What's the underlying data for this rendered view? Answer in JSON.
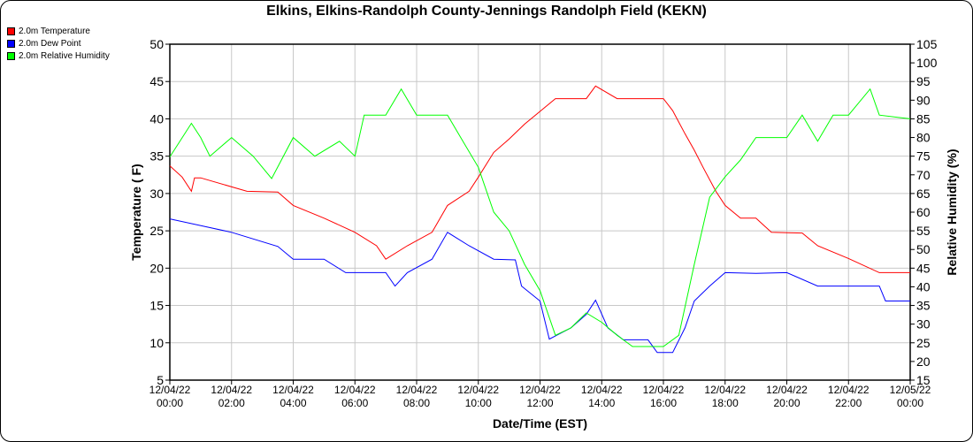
{
  "chart_data": {
    "type": "line",
    "title": "Elkins, Elkins-Randolph County-Jennings Randolph Field (KEKN)",
    "xlabel": "Date/Time (EST)",
    "ylabel": "Temperature ( F)",
    "y2label": "Relative Humidity (%)",
    "xlim_hours": [
      0,
      24
    ],
    "ylim": [
      5,
      50
    ],
    "y2lim": [
      15,
      105
    ],
    "grid": true,
    "legend_position": "top-left",
    "yticks": [
      "5",
      "10",
      "15",
      "20",
      "25",
      "30",
      "35",
      "40",
      "45",
      "50"
    ],
    "y2ticks": [
      "15",
      "20",
      "25",
      "30",
      "35",
      "40",
      "45",
      "50",
      "55",
      "60",
      "65",
      "70",
      "75",
      "80",
      "85",
      "90",
      "95",
      "100",
      "105"
    ],
    "xticks": [
      {
        "date": "12/04/22",
        "time": "00:00"
      },
      {
        "date": "12/04/22",
        "time": "02:00"
      },
      {
        "date": "12/04/22",
        "time": "04:00"
      },
      {
        "date": "12/04/22",
        "time": "06:00"
      },
      {
        "date": "12/04/22",
        "time": "08:00"
      },
      {
        "date": "12/04/22",
        "time": "10:00"
      },
      {
        "date": "12/04/22",
        "time": "12:00"
      },
      {
        "date": "12/04/22",
        "time": "14:00"
      },
      {
        "date": "12/04/22",
        "time": "16:00"
      },
      {
        "date": "12/04/22",
        "time": "18:00"
      },
      {
        "date": "12/04/22",
        "time": "20:00"
      },
      {
        "date": "12/04/22",
        "time": "22:00"
      },
      {
        "date": "12/05/22",
        "time": "00:00"
      }
    ],
    "series": [
      {
        "name": "2.0m Temperature",
        "color": "#ff0000",
        "axis": "left",
        "x": [
          0,
          0.4,
          0.7,
          0.8,
          1,
          2.5,
          3.5,
          4,
          5,
          6,
          6.7,
          7,
          7.7,
          8.5,
          9,
          9.7,
          10,
          10.5,
          11,
          11.5,
          12,
          12.5,
          13.5,
          13.8,
          14.5,
          16,
          16.3,
          16.7,
          17,
          17.3,
          17.7,
          18,
          18.5,
          19,
          19.5,
          20.5,
          21,
          22,
          23,
          24
        ],
        "y": [
          33.7,
          32.2,
          30.3,
          32.1,
          32.1,
          30.3,
          30.2,
          28.4,
          26.7,
          24.8,
          23,
          21.2,
          23,
          24.8,
          28.4,
          30.3,
          32.2,
          35.5,
          37.3,
          39.3,
          41,
          42.7,
          42.7,
          44.4,
          42.7,
          42.7,
          41.1,
          38,
          35.8,
          33.4,
          30.3,
          28.4,
          26.7,
          26.7,
          24.8,
          24.7,
          23,
          21.3,
          19.4,
          19.4
        ]
      },
      {
        "name": "2.0m Dew Point",
        "color": "#0000ff",
        "axis": "left",
        "x": [
          0,
          2,
          3.5,
          4,
          5,
          5.7,
          7,
          7.3,
          7.7,
          8.5,
          9,
          9.7,
          10.5,
          11.2,
          11.4,
          12,
          12.3,
          13,
          13.5,
          13.8,
          14.2,
          14.7,
          15.5,
          15.8,
          16.3,
          16.7,
          17,
          17.5,
          18,
          19,
          20,
          21,
          23,
          23.2,
          24
        ],
        "y": [
          26.6,
          24.8,
          22.9,
          21.2,
          21.2,
          19.4,
          19.4,
          17.6,
          19.4,
          21.2,
          24.8,
          23,
          21.2,
          21.1,
          17.6,
          15.6,
          10.5,
          12,
          13.8,
          15.7,
          12,
          10.4,
          10.4,
          8.7,
          8.7,
          12,
          15.6,
          17.6,
          19.4,
          19.3,
          19.4,
          17.6,
          17.6,
          15.6,
          15.6
        ]
      },
      {
        "name": "2.0m Relative Humidity",
        "color": "#00ff00",
        "axis": "right",
        "x": [
          0,
          0.7,
          1,
          1.3,
          2,
          2.7,
          3.3,
          4,
          4.7,
          5.5,
          6,
          6.3,
          7,
          7.5,
          8,
          9,
          9.5,
          10,
          10.5,
          11,
          11.5,
          12,
          12.5,
          13,
          13.5,
          14,
          14.5,
          15,
          16,
          16.5,
          17,
          17.5,
          18,
          18.5,
          19,
          20,
          20.5,
          21,
          21.5,
          22,
          22.7,
          23,
          24
        ],
        "y": [
          74.8,
          83.8,
          80,
          75,
          80,
          75,
          69,
          80,
          75,
          79,
          75,
          86,
          86,
          93,
          86,
          86,
          79,
          72,
          60,
          55,
          46,
          39,
          27,
          29,
          33,
          30.5,
          27,
          24,
          24,
          27,
          46,
          64,
          69.5,
          74,
          80,
          80,
          86,
          79,
          86,
          86,
          93,
          86,
          85
        ]
      }
    ]
  }
}
